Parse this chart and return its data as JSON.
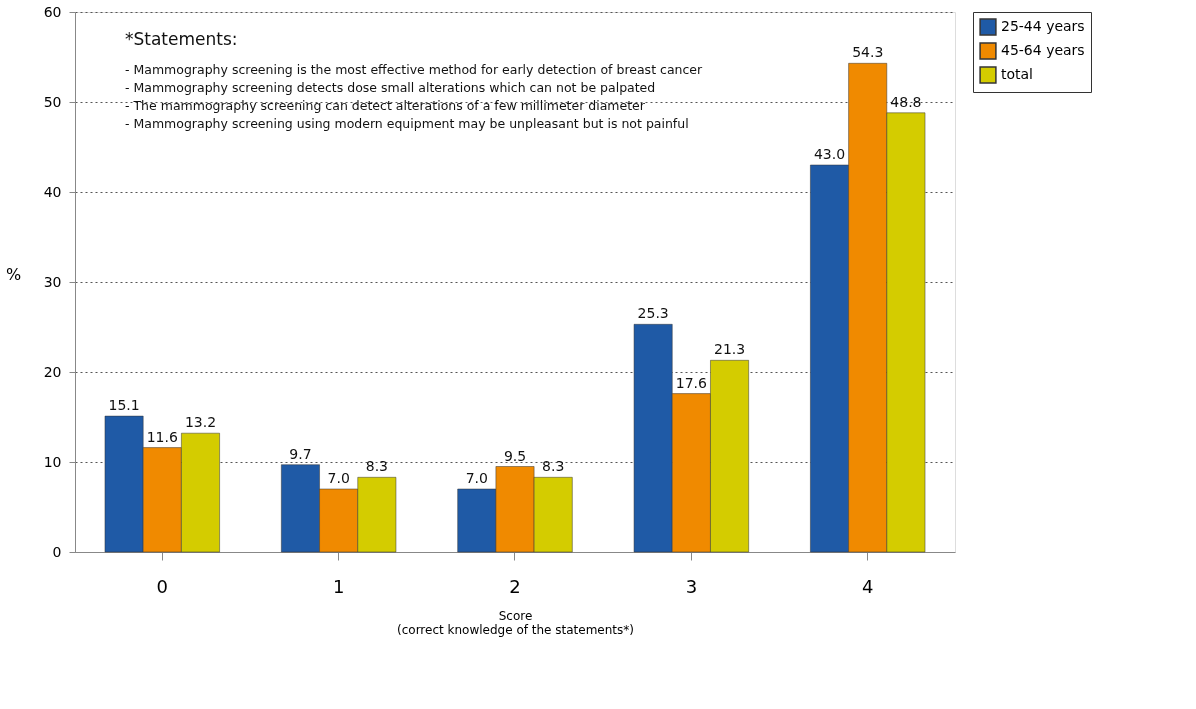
{
  "chart_data": {
    "type": "bar",
    "categories": [
      "0",
      "1",
      "2",
      "3",
      "4"
    ],
    "series": [
      {
        "name": "25-44 years",
        "color": "#1f5aa6",
        "values": [
          15.1,
          9.7,
          7.0,
          25.3,
          43.0
        ],
        "value_labels": [
          "15.1",
          "9.7",
          "7.0",
          "25.3",
          "43.0"
        ]
      },
      {
        "name": "45-64 years",
        "color": "#f08a00",
        "values": [
          11.6,
          7.0,
          9.5,
          17.6,
          54.3
        ],
        "value_labels": [
          "11.6",
          "7.0",
          "9.5",
          "17.6",
          "54.3"
        ]
      },
      {
        "name": "total",
        "color": "#d4cc00",
        "values": [
          13.2,
          8.3,
          8.3,
          21.3,
          48.8
        ],
        "value_labels": [
          "13.2",
          "8.3",
          "8.3",
          "21.3",
          "48.8"
        ]
      }
    ],
    "xlabel": "Score\n(correct knowledge of the statements*)",
    "ylabel": "%",
    "ylim": [
      0,
      60
    ],
    "yticks": [
      0,
      10,
      20,
      30,
      40,
      50,
      60
    ],
    "grid": "y",
    "legend": "right",
    "annotations": [
      "*Statements:",
      "- Mammography screening is the most effective method for early detection of breast cancer",
      "- Mammography screening detects dose small alterations which can not be palpated",
      "- The mammography screening can detect alterations of a few millimeter diameter",
      "- Mammography screening using modern equipment may be unpleasant but is not painful"
    ]
  }
}
